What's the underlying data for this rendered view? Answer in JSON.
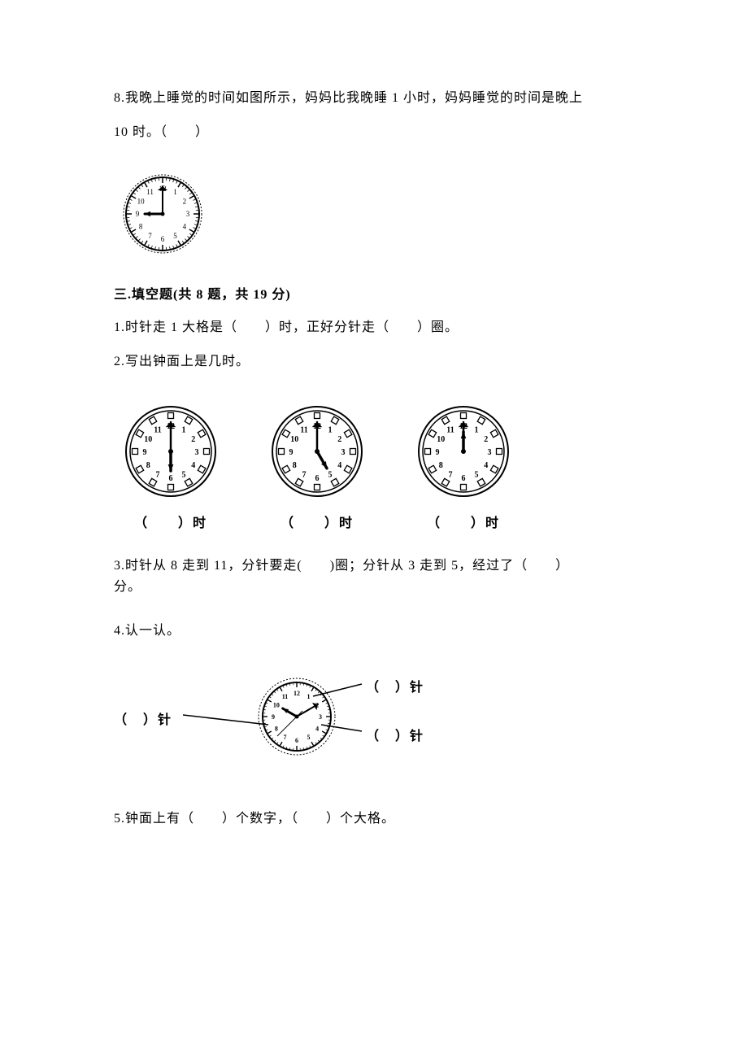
{
  "q8": {
    "line1": "8.我晚上睡觉的时间如图所示，妈妈比我晚睡 1 小时，妈妈睡觉的时间是晚上",
    "line2": "10 时。（　　）"
  },
  "section3_title": "三.填空题(共 8 题，共 19 分)",
  "s3q1": "1.时针走 1 大格是（　　）时，正好分针走（　　）圈。",
  "s3q2": "2.写出钟面上是几时。",
  "s3q2_caption": "（　　）时",
  "s3q3_line1": "3.时针从 8 走到 11，分针要走(　　)圈；分针从 3 走到 5，经过了（　　）",
  "s3q3_line2": "分。",
  "s3q4": "4.认一认。",
  "s3q4_label_left": "（　）针",
  "s3q4_label_top": "（　）针",
  "s3q4_label_right": "（　）针",
  "s3q5": "5.钟面上有（　　）个数字，（　　）个大格。",
  "clock_q8": {
    "type": "clock",
    "radius": 45,
    "stroke": "#000000",
    "fill": "#ffffff",
    "number_font": 9,
    "tick_color": "#000000",
    "hour_angle": 270,
    "minute_angle": 0,
    "hour_len": 22,
    "minute_len": 34,
    "hour_width": 3,
    "minute_width": 2,
    "dotted_border": true
  },
  "clocks_q2": [
    {
      "hour_angle": 180,
      "minute_angle": 0
    },
    {
      "hour_angle": 150,
      "minute_angle": 0
    },
    {
      "hour_angle": 0,
      "minute_angle": 0
    }
  ],
  "clock_q2_style": {
    "radius": 50,
    "stroke": "#000000",
    "fill": "#ffffff",
    "number_font": 10,
    "hour_len": 24,
    "minute_len": 36,
    "hour_width": 3.5,
    "minute_width": 2.5,
    "square_markers": true
  },
  "clock_q4": {
    "radius": 42,
    "stroke": "#000000",
    "fill": "#ffffff",
    "number_font": 8,
    "hour_angle": 300,
    "minute_angle": 60,
    "second_angle": 225,
    "hour_len": 20,
    "minute_len": 30,
    "second_len": 34,
    "hour_width": 3,
    "minute_width": 2,
    "second_width": 1,
    "dotted_border": true
  },
  "colors": {
    "text": "#000000",
    "bg": "#ffffff"
  }
}
